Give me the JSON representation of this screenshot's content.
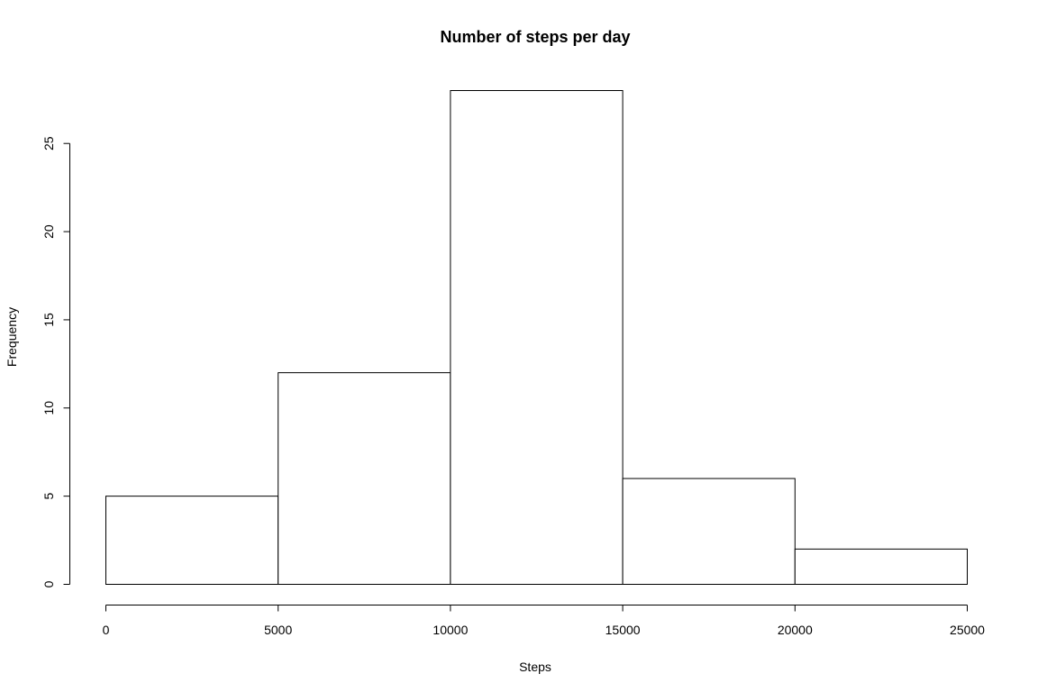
{
  "chart_data": {
    "type": "bar",
    "subtype": "histogram",
    "title": "Number of steps per day",
    "xlabel": "Steps",
    "ylabel": "Frequency",
    "bins": [
      {
        "start": 0,
        "end": 5000,
        "count": 5
      },
      {
        "start": 5000,
        "end": 10000,
        "count": 12
      },
      {
        "start": 10000,
        "end": 15000,
        "count": 28
      },
      {
        "start": 15000,
        "end": 20000,
        "count": 6
      },
      {
        "start": 20000,
        "end": 25000,
        "count": 2
      }
    ],
    "xlim": [
      0,
      25000
    ],
    "ylim": [
      0,
      28
    ],
    "x_ticks": [
      0,
      5000,
      10000,
      15000,
      20000,
      25000
    ],
    "x_tick_labels": [
      "0",
      "5000",
      "10000",
      "15000",
      "20000",
      "25000"
    ],
    "y_ticks": [
      0,
      5,
      10,
      15,
      20,
      25
    ],
    "y_tick_labels": [
      "0",
      "5",
      "10",
      "15",
      "20",
      "25"
    ],
    "grid": false,
    "legend": "none",
    "bar_fill": "#ffffff",
    "bar_stroke": "#000000"
  }
}
